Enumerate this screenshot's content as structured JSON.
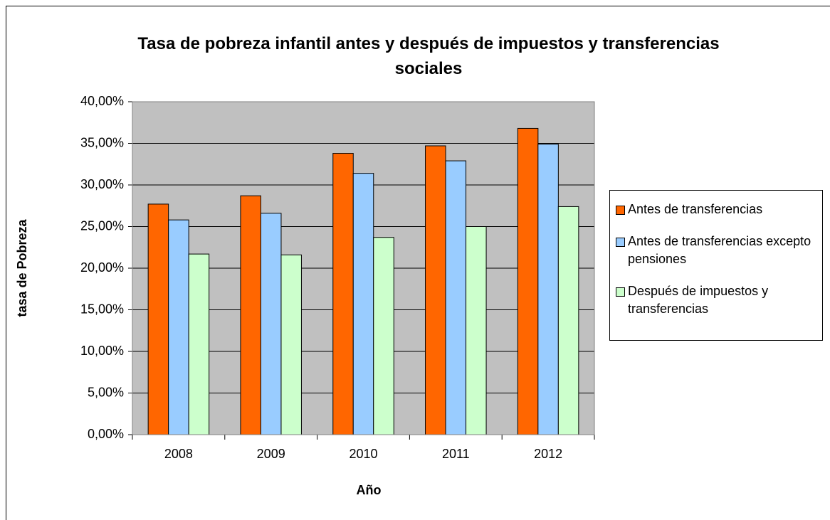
{
  "chart_data": {
    "type": "bar",
    "title": "Tasa de pobreza infantil antes y después de impuestos y transferencias sociales",
    "x_label": "Año",
    "y_label": "tasa de Pobreza",
    "categories": [
      "2008",
      "2009",
      "2010",
      "2011",
      "2012"
    ],
    "series": [
      {
        "name": "Antes de transferencias",
        "color": "#ff6600",
        "values": [
          27.7,
          28.7,
          33.8,
          34.7,
          36.8
        ]
      },
      {
        "name": "Antes de transferencias excepto pensiones",
        "color": "#99ccff",
        "values": [
          25.8,
          26.6,
          31.4,
          32.9,
          34.9
        ]
      },
      {
        "name": "Después de impuestos y transferencias",
        "color": "#ccffcc",
        "values": [
          21.7,
          21.6,
          23.7,
          25.0,
          27.4
        ]
      }
    ],
    "ylim": [
      0,
      40
    ],
    "yticks": [
      {
        "value": 0,
        "label": "0,00%"
      },
      {
        "value": 5,
        "label": "5,00%"
      },
      {
        "value": 10,
        "label": "10,00%"
      },
      {
        "value": 15,
        "label": "15,00%"
      },
      {
        "value": 20,
        "label": "20,00%"
      },
      {
        "value": 25,
        "label": "25,00%"
      },
      {
        "value": 30,
        "label": "30,00%"
      },
      {
        "value": 35,
        "label": "35,00%"
      },
      {
        "value": 40,
        "label": "40,00%"
      }
    ],
    "grid": true,
    "plot_background": "#c0c0c0",
    "legend": "right"
  }
}
